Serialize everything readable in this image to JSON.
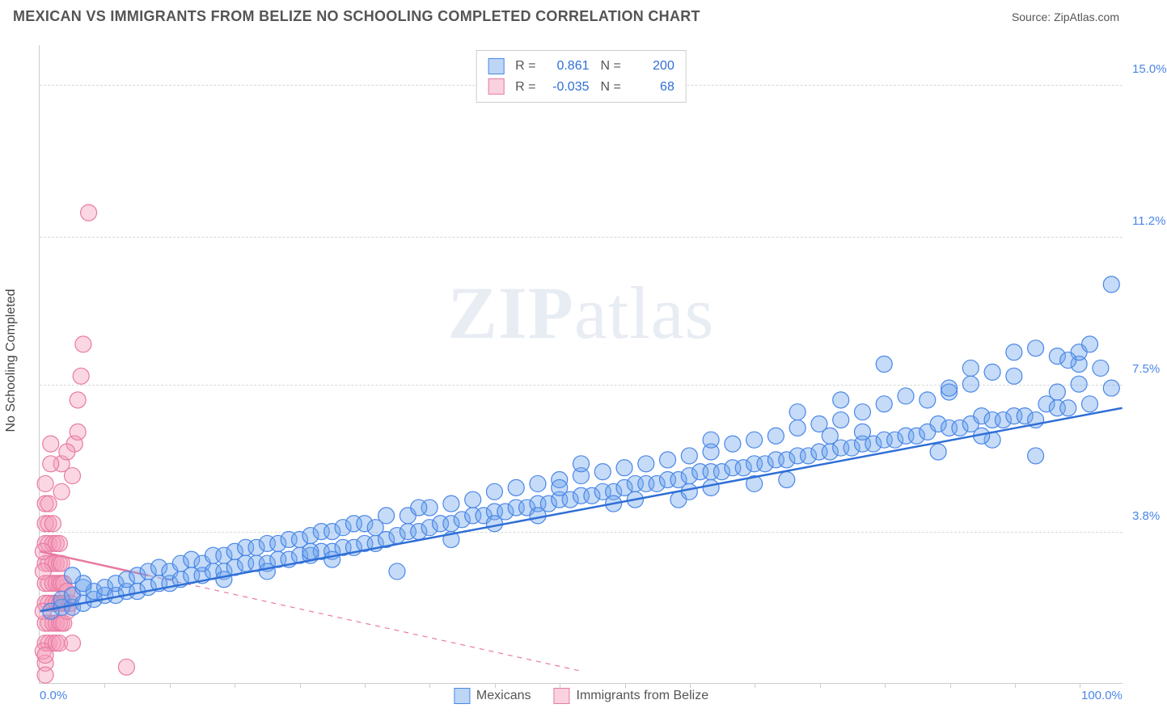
{
  "header": {
    "title": "MEXICAN VS IMMIGRANTS FROM BELIZE NO SCHOOLING COMPLETED CORRELATION CHART",
    "source_prefix": "Source: ",
    "source_name": "ZipAtlas.com"
  },
  "watermark": {
    "zip": "ZIP",
    "atlas": "atlas"
  },
  "y_axis_label": "No Schooling Completed",
  "chart": {
    "type": "scatter",
    "background_color": "#ffffff",
    "grid_color": "#d8d8d8",
    "border_color": "#cccccc",
    "xlim": [
      0,
      100
    ],
    "ylim": [
      0,
      16
    ],
    "x_ticks": [
      {
        "value": 0,
        "label": "0.0%"
      },
      {
        "value": 100,
        "label": "100.0%"
      }
    ],
    "x_minor_ticks": [
      6,
      12,
      18,
      24,
      30,
      36,
      42,
      48,
      54,
      60,
      66,
      72,
      78,
      84,
      90,
      96
    ],
    "y_gridlines": [
      {
        "value": 3.8,
        "label": "3.8%"
      },
      {
        "value": 7.5,
        "label": "7.5%"
      },
      {
        "value": 11.2,
        "label": "11.2%"
      },
      {
        "value": 15.0,
        "label": "15.0%"
      }
    ],
    "label_color": "#4a86e8",
    "label_fontsize": 15
  },
  "series": {
    "mexicans": {
      "label": "Mexicans",
      "color_fill": "rgba(110,165,235,0.40)",
      "color_stroke": "#4a86e8",
      "marker_radius": 10,
      "stats": {
        "R_label": "R =",
        "R": "0.861",
        "N_label": "N =",
        "N": "200"
      },
      "regression": {
        "x1": 0,
        "y1": 1.8,
        "x2": 100,
        "y2": 6.9,
        "dash_start_x": 0
      },
      "points": [
        [
          1,
          1.8
        ],
        [
          2,
          1.9
        ],
        [
          2,
          2.1
        ],
        [
          3,
          1.9
        ],
        [
          3,
          2.2
        ],
        [
          4,
          2.0
        ],
        [
          4,
          2.4
        ],
        [
          5,
          2.1
        ],
        [
          5,
          2.3
        ],
        [
          6,
          2.2
        ],
        [
          6,
          2.4
        ],
        [
          7,
          2.2
        ],
        [
          7,
          2.5
        ],
        [
          8,
          2.3
        ],
        [
          8,
          2.6
        ],
        [
          9,
          2.3
        ],
        [
          9,
          2.7
        ],
        [
          10,
          2.4
        ],
        [
          10,
          2.8
        ],
        [
          11,
          2.5
        ],
        [
          11,
          2.9
        ],
        [
          12,
          2.5
        ],
        [
          12,
          2.8
        ],
        [
          13,
          2.6
        ],
        [
          13,
          3.0
        ],
        [
          14,
          2.7
        ],
        [
          14,
          3.1
        ],
        [
          15,
          2.7
        ],
        [
          15,
          3.0
        ],
        [
          16,
          2.8
        ],
        [
          16,
          3.2
        ],
        [
          17,
          2.8
        ],
        [
          17,
          3.2
        ],
        [
          18,
          2.9
        ],
        [
          18,
          3.3
        ],
        [
          19,
          3.0
        ],
        [
          19,
          3.4
        ],
        [
          20,
          3.0
        ],
        [
          20,
          3.4
        ],
        [
          21,
          3.0
        ],
        [
          21,
          3.5
        ],
        [
          22,
          3.1
        ],
        [
          22,
          3.5
        ],
        [
          23,
          3.1
        ],
        [
          23,
          3.6
        ],
        [
          24,
          3.2
        ],
        [
          24,
          3.6
        ],
        [
          25,
          3.2
        ],
        [
          25,
          3.7
        ],
        [
          26,
          3.3
        ],
        [
          26,
          3.8
        ],
        [
          27,
          3.3
        ],
        [
          27,
          3.8
        ],
        [
          28,
          3.4
        ],
        [
          28,
          3.9
        ],
        [
          29,
          3.4
        ],
        [
          29,
          4.0
        ],
        [
          30,
          3.5
        ],
        [
          30,
          4.0
        ],
        [
          31,
          3.5
        ],
        [
          32,
          3.6
        ],
        [
          32,
          4.2
        ],
        [
          33,
          3.7
        ],
        [
          34,
          3.8
        ],
        [
          34,
          4.2
        ],
        [
          35,
          3.8
        ],
        [
          36,
          3.9
        ],
        [
          36,
          4.4
        ],
        [
          37,
          4.0
        ],
        [
          38,
          4.0
        ],
        [
          38,
          4.5
        ],
        [
          39,
          4.1
        ],
        [
          40,
          4.2
        ],
        [
          40,
          4.6
        ],
        [
          41,
          4.2
        ],
        [
          42,
          4.3
        ],
        [
          42,
          4.8
        ],
        [
          43,
          4.3
        ],
        [
          44,
          4.4
        ],
        [
          44,
          4.9
        ],
        [
          45,
          4.4
        ],
        [
          46,
          4.5
        ],
        [
          46,
          5.0
        ],
        [
          47,
          4.5
        ],
        [
          48,
          4.6
        ],
        [
          48,
          5.1
        ],
        [
          49,
          4.6
        ],
        [
          50,
          4.7
        ],
        [
          50,
          5.2
        ],
        [
          51,
          4.7
        ],
        [
          52,
          4.8
        ],
        [
          52,
          5.3
        ],
        [
          53,
          4.8
        ],
        [
          54,
          4.9
        ],
        [
          54,
          5.4
        ],
        [
          55,
          5.0
        ],
        [
          56,
          5.0
        ],
        [
          56,
          5.5
        ],
        [
          57,
          5.0
        ],
        [
          58,
          5.1
        ],
        [
          58,
          5.6
        ],
        [
          59,
          5.1
        ],
        [
          60,
          5.2
        ],
        [
          60,
          5.7
        ],
        [
          61,
          5.3
        ],
        [
          62,
          5.3
        ],
        [
          62,
          5.8
        ],
        [
          63,
          5.3
        ],
        [
          64,
          5.4
        ],
        [
          64,
          6.0
        ],
        [
          65,
          5.4
        ],
        [
          66,
          5.5
        ],
        [
          66,
          6.1
        ],
        [
          67,
          5.5
        ],
        [
          68,
          5.6
        ],
        [
          68,
          6.2
        ],
        [
          69,
          5.6
        ],
        [
          70,
          5.7
        ],
        [
          70,
          6.4
        ],
        [
          71,
          5.7
        ],
        [
          72,
          5.8
        ],
        [
          72,
          6.5
        ],
        [
          73,
          5.8
        ],
        [
          74,
          5.9
        ],
        [
          74,
          6.6
        ],
        [
          75,
          5.9
        ],
        [
          76,
          6.0
        ],
        [
          76,
          6.8
        ],
        [
          77,
          6.0
        ],
        [
          78,
          6.1
        ],
        [
          78,
          7.0
        ],
        [
          79,
          6.1
        ],
        [
          80,
          6.2
        ],
        [
          80,
          7.2
        ],
        [
          81,
          6.2
        ],
        [
          82,
          6.3
        ],
        [
          82,
          7.1
        ],
        [
          83,
          6.5
        ],
        [
          84,
          6.4
        ],
        [
          84,
          7.3
        ],
        [
          85,
          6.4
        ],
        [
          86,
          6.5
        ],
        [
          86,
          7.5
        ],
        [
          87,
          6.7
        ],
        [
          88,
          6.6
        ],
        [
          88,
          7.8
        ],
        [
          89,
          6.6
        ],
        [
          90,
          6.7
        ],
        [
          90,
          7.7
        ],
        [
          91,
          6.7
        ],
        [
          92,
          6.6
        ],
        [
          92,
          8.4
        ],
        [
          93,
          7.0
        ],
        [
          94,
          6.9
        ],
        [
          94,
          8.2
        ],
        [
          95,
          6.9
        ],
        [
          96,
          7.5
        ],
        [
          96,
          8.0
        ],
        [
          97,
          7.0
        ],
        [
          98,
          7.9
        ],
        [
          99,
          10.0
        ],
        [
          99,
          7.4
        ],
        [
          27,
          3.1
        ],
        [
          33,
          2.8
        ],
        [
          48,
          4.9
        ],
        [
          55,
          4.6
        ],
        [
          62,
          6.1
        ],
        [
          69,
          5.1
        ],
        [
          76,
          6.3
        ],
        [
          83,
          5.8
        ],
        [
          4,
          2.5
        ],
        [
          38,
          3.6
        ],
        [
          59,
          4.6
        ],
        [
          70,
          6.8
        ],
        [
          84,
          7.4
        ],
        [
          88,
          6.1
        ],
        [
          90,
          8.3
        ],
        [
          94,
          7.3
        ],
        [
          96,
          8.3
        ],
        [
          3,
          2.7
        ],
        [
          35,
          4.4
        ],
        [
          25,
          3.3
        ],
        [
          60,
          4.8
        ],
        [
          78,
          8.0
        ],
        [
          50,
          5.5
        ],
        [
          42,
          4.0
        ],
        [
          66,
          5.0
        ],
        [
          73,
          6.2
        ],
        [
          86,
          7.9
        ],
        [
          92,
          5.7
        ],
        [
          97,
          8.5
        ],
        [
          53,
          4.5
        ],
        [
          17,
          2.6
        ],
        [
          21,
          2.8
        ],
        [
          31,
          3.9
        ],
        [
          46,
          4.2
        ],
        [
          62,
          4.9
        ],
        [
          74,
          7.1
        ],
        [
          87,
          6.2
        ],
        [
          95,
          8.1
        ]
      ]
    },
    "belize": {
      "label": "Immigrants from Belize",
      "color_fill": "rgba(245,155,185,0.40)",
      "color_stroke": "#e87aa3",
      "marker_radius": 10,
      "stats": {
        "R_label": "R =",
        "R": "-0.035",
        "N_label": "N =",
        "N": "68"
      },
      "regression": {
        "x1": 0,
        "y1": 3.3,
        "x2": 50,
        "y2": 0.3,
        "solid_end_x": 10
      },
      "points": [
        [
          0.5,
          0.5
        ],
        [
          0.5,
          1.0
        ],
        [
          0.5,
          1.5
        ],
        [
          0.5,
          2.0
        ],
        [
          0.5,
          2.5
        ],
        [
          0.5,
          3.0
        ],
        [
          0.5,
          3.5
        ],
        [
          0.5,
          4.0
        ],
        [
          0.5,
          4.5
        ],
        [
          0.5,
          5.0
        ],
        [
          0.8,
          1.0
        ],
        [
          0.8,
          1.5
        ],
        [
          0.8,
          2.0
        ],
        [
          0.8,
          2.5
        ],
        [
          0.8,
          3.0
        ],
        [
          0.8,
          3.5
        ],
        [
          0.8,
          4.0
        ],
        [
          0.8,
          4.5
        ],
        [
          1.2,
          1.0
        ],
        [
          1.2,
          1.5
        ],
        [
          1.2,
          2.0
        ],
        [
          1.2,
          2.5
        ],
        [
          1.2,
          3.0
        ],
        [
          1.2,
          3.5
        ],
        [
          1.2,
          4.0
        ],
        [
          1.5,
          1.0
        ],
        [
          1.5,
          1.5
        ],
        [
          1.5,
          2.0
        ],
        [
          1.5,
          2.5
        ],
        [
          1.5,
          3.0
        ],
        [
          1.5,
          3.5
        ],
        [
          1.8,
          1.0
        ],
        [
          1.8,
          1.5
        ],
        [
          1.8,
          2.0
        ],
        [
          1.8,
          2.5
        ],
        [
          1.8,
          3.0
        ],
        [
          1.8,
          3.5
        ],
        [
          2.0,
          1.5
        ],
        [
          2.0,
          2.0
        ],
        [
          2.0,
          2.5
        ],
        [
          2.0,
          3.0
        ],
        [
          2.2,
          1.5
        ],
        [
          2.2,
          2.0
        ],
        [
          2.2,
          2.5
        ],
        [
          2.5,
          1.8
        ],
        [
          2.5,
          2.3
        ],
        [
          2.8,
          2.0
        ],
        [
          3.0,
          2.2
        ],
        [
          3.2,
          6.0
        ],
        [
          3.5,
          6.3
        ],
        [
          3.5,
          7.1
        ],
        [
          3.8,
          7.7
        ],
        [
          4.0,
          8.5
        ],
        [
          2.0,
          5.5
        ],
        [
          2.5,
          5.8
        ],
        [
          3.0,
          5.2
        ],
        [
          1.0,
          5.5
        ],
        [
          1.0,
          6.0
        ],
        [
          2.0,
          4.8
        ],
        [
          0.3,
          2.8
        ],
        [
          0.3,
          3.3
        ],
        [
          0.3,
          1.8
        ],
        [
          0.3,
          0.8
        ],
        [
          3.0,
          1.0
        ],
        [
          4.5,
          11.8
        ],
        [
          8.0,
          0.4
        ],
        [
          0.5,
          0.2
        ],
        [
          0.5,
          0.7
        ]
      ]
    }
  }
}
